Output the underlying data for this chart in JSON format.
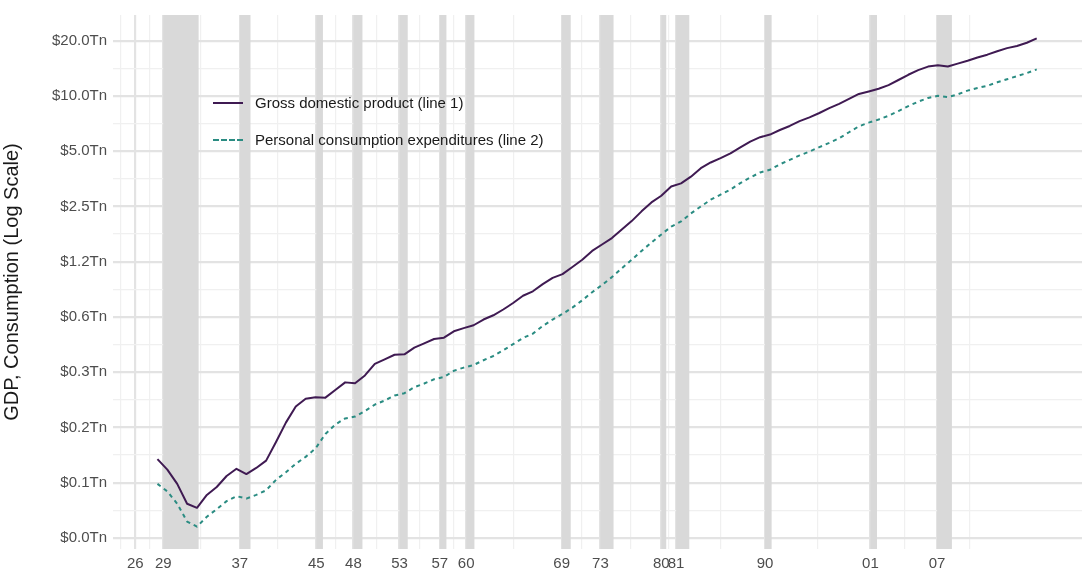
{
  "chart_data": {
    "type": "line",
    "ylabel": "GDP, Consumption (Log Scale)",
    "log": "y",
    "grid": true,
    "legend": "top left",
    "marker": "none",
    "x": [
      "1929",
      "1930",
      "1931",
      "1932",
      "1933",
      "1934",
      "1935",
      "1936",
      "1937",
      "1938",
      "1939",
      "1940",
      "1941",
      "1942",
      "1943",
      "1944",
      "1945",
      "1946",
      "1947",
      "1948",
      "1949",
      "1950",
      "1951",
      "1952",
      "1953",
      "1954",
      "1955",
      "1956",
      "1957",
      "1958",
      "1959",
      "1960",
      "1961",
      "1962",
      "1963",
      "1964",
      "1965",
      "1966",
      "1967",
      "1968",
      "1969",
      "1970",
      "1971",
      "1972",
      "1973",
      "1974",
      "1975",
      "1976",
      "1977",
      "1978",
      "1979",
      "1980",
      "1981",
      "1982",
      "1983",
      "1984",
      "1985",
      "1986",
      "1987",
      "1988",
      "1989",
      "1990",
      "1991",
      "1992",
      "1993",
      "1994",
      "1995",
      "1996",
      "1997",
      "1998",
      "1999",
      "2000",
      "2001",
      "2002",
      "2003",
      "2004",
      "2005",
      "2006",
      "2007",
      "2008",
      "2009",
      "2010",
      "2011",
      "2012",
      "2013",
      "2014",
      "2015",
      "2016",
      "2017",
      "2018"
    ],
    "series": [
      {
        "name": "Gross domestic product (line 1)",
        "color": "#3f1a52",
        "line_style": "solid",
        "values": [
          0.105,
          0.092,
          0.077,
          0.06,
          0.057,
          0.067,
          0.074,
          0.085,
          0.093,
          0.087,
          0.094,
          0.103,
          0.13,
          0.166,
          0.203,
          0.224,
          0.228,
          0.227,
          0.25,
          0.275,
          0.272,
          0.3,
          0.347,
          0.367,
          0.389,
          0.391,
          0.425,
          0.449,
          0.474,
          0.482,
          0.522,
          0.543,
          0.563,
          0.605,
          0.638,
          0.686,
          0.744,
          0.815,
          0.862,
          0.943,
          1.02,
          1.07,
          1.17,
          1.28,
          1.43,
          1.55,
          1.68,
          1.87,
          2.08,
          2.35,
          2.63,
          2.86,
          3.21,
          3.34,
          3.63,
          4.04,
          4.34,
          4.58,
          4.86,
          5.24,
          5.64,
          5.96,
          6.16,
          6.52,
          6.86,
          7.29,
          7.64,
          8.07,
          8.58,
          9.06,
          9.63,
          10.25,
          10.58,
          10.94,
          11.46,
          12.21,
          13.04,
          13.82,
          14.45,
          14.71,
          14.45,
          14.99,
          15.54,
          16.2,
          16.78,
          17.52,
          18.22,
          18.71,
          19.49,
          20.58
        ]
      },
      {
        "name": "Personal consumption expenditures (line 2)",
        "color": "#2a8c82",
        "line_style": "dashed",
        "values": [
          0.077,
          0.07,
          0.06,
          0.048,
          0.045,
          0.051,
          0.056,
          0.062,
          0.066,
          0.064,
          0.067,
          0.071,
          0.081,
          0.089,
          0.099,
          0.108,
          0.12,
          0.144,
          0.162,
          0.175,
          0.179,
          0.192,
          0.208,
          0.219,
          0.233,
          0.24,
          0.259,
          0.271,
          0.286,
          0.294,
          0.318,
          0.331,
          0.342,
          0.363,
          0.383,
          0.411,
          0.444,
          0.48,
          0.507,
          0.558,
          0.605,
          0.649,
          0.702,
          0.77,
          0.852,
          0.933,
          1.03,
          1.15,
          1.28,
          1.43,
          1.59,
          1.76,
          1.94,
          2.07,
          2.29,
          2.5,
          2.72,
          2.9,
          3.09,
          3.35,
          3.59,
          3.83,
          3.96,
          4.24,
          4.48,
          4.74,
          4.98,
          5.26,
          5.55,
          5.88,
          6.34,
          6.83,
          7.15,
          7.44,
          7.8,
          8.27,
          8.8,
          9.3,
          9.75,
          10.01,
          9.85,
          10.2,
          10.69,
          11.05,
          11.36,
          11.86,
          12.33,
          12.82,
          13.32,
          13.95
        ]
      }
    ],
    "xlim": [
      "1924-07",
      "2022-08"
    ],
    "xticks": [
      {
        "value": "1925-04",
        "label": null
      },
      {
        "value": "1926-10",
        "label": "26"
      },
      {
        "value": "1928-03",
        "label": null
      },
      {
        "value": "1929-08",
        "label": "29"
      },
      {
        "value": "1933-06",
        "label": null
      },
      {
        "value": "1937-05",
        "label": "37"
      },
      {
        "value": "1941-03",
        "label": null
      },
      {
        "value": "1945-02",
        "label": "45"
      },
      {
        "value": "1947-01",
        "label": null
      },
      {
        "value": "1948-11",
        "label": "48"
      },
      {
        "value": "1951-03",
        "label": null
      },
      {
        "value": "1953-07",
        "label": "53"
      },
      {
        "value": "1955-08",
        "label": null
      },
      {
        "value": "1957-08",
        "label": "57"
      },
      {
        "value": "1959-01",
        "label": null
      },
      {
        "value": "1960-04",
        "label": "60"
      },
      {
        "value": "1965-02",
        "label": null
      },
      {
        "value": "1969-12",
        "label": "69"
      },
      {
        "value": "1971-12",
        "label": null
      },
      {
        "value": "1973-11",
        "label": "73"
      },
      {
        "value": "1976-12",
        "label": null
      },
      {
        "value": "1980-01",
        "label": "80"
      },
      {
        "value": "1980-10",
        "label": null
      },
      {
        "value": "1981-07",
        "label": "81"
      },
      {
        "value": "1986-01",
        "label": null
      },
      {
        "value": "1990-07",
        "label": "90"
      },
      {
        "value": "1995-11",
        "label": null
      },
      {
        "value": "2001-03",
        "label": "01"
      },
      {
        "value": "2004-08",
        "label": null
      },
      {
        "value": "2007-12",
        "label": "07"
      },
      {
        "value": "2011-03",
        "label": null
      }
    ],
    "ylim": [
      0.034,
      27.6
    ],
    "yticks": [
      {
        "value": 0.0390625,
        "label": "$0.0Tn"
      },
      {
        "value": 0.0552,
        "label": null
      },
      {
        "value": 0.078125,
        "label": "$0.1Tn"
      },
      {
        "value": 0.1105,
        "label": null
      },
      {
        "value": 0.15625,
        "label": "$0.2Tn"
      },
      {
        "value": 0.221,
        "label": null
      },
      {
        "value": 0.3125,
        "label": "$0.3Tn"
      },
      {
        "value": 0.442,
        "label": null
      },
      {
        "value": 0.625,
        "label": "$0.6Tn"
      },
      {
        "value": 0.884,
        "label": null
      },
      {
        "value": 1.25,
        "label": "$1.2Tn"
      },
      {
        "value": 1.768,
        "label": null
      },
      {
        "value": 2.5,
        "label": "$2.5Tn"
      },
      {
        "value": 3.536,
        "label": null
      },
      {
        "value": 5,
        "label": "$5.0Tn"
      },
      {
        "value": 7.071,
        "label": null
      },
      {
        "value": 10,
        "label": "$10.0Tn"
      },
      {
        "value": 14.14,
        "label": null
      },
      {
        "value": 20,
        "label": "$20.0Tn"
      }
    ],
    "bands": [
      {
        "axis": "x",
        "from": "1929-08",
        "to": "1933-03",
        "color": "#d9d9d9"
      },
      {
        "axis": "x",
        "from": "1937-05",
        "to": "1938-06",
        "color": "#d9d9d9"
      },
      {
        "axis": "x",
        "from": "1945-02",
        "to": "1945-10",
        "color": "#d9d9d9"
      },
      {
        "axis": "x",
        "from": "1948-11",
        "to": "1949-10",
        "color": "#d9d9d9"
      },
      {
        "axis": "x",
        "from": "1953-07",
        "to": "1954-05",
        "color": "#d9d9d9"
      },
      {
        "axis": "x",
        "from": "1957-08",
        "to": "1958-04",
        "color": "#d9d9d9"
      },
      {
        "axis": "x",
        "from": "1960-04",
        "to": "1961-02",
        "color": "#d9d9d9"
      },
      {
        "axis": "x",
        "from": "1969-12",
        "to": "1970-11",
        "color": "#d9d9d9"
      },
      {
        "axis": "x",
        "from": "1973-11",
        "to": "1975-03",
        "color": "#d9d9d9"
      },
      {
        "axis": "x",
        "from": "1980-01",
        "to": "1980-07",
        "color": "#d9d9d9"
      },
      {
        "axis": "x",
        "from": "1981-07",
        "to": "1982-11",
        "color": "#d9d9d9"
      },
      {
        "axis": "x",
        "from": "1990-07",
        "to": "1991-03",
        "color": "#d9d9d9"
      },
      {
        "axis": "x",
        "from": "2001-03",
        "to": "2001-11",
        "color": "#d9d9d9"
      },
      {
        "axis": "x",
        "from": "2007-12",
        "to": "2009-06",
        "color": "#d9d9d9"
      }
    ]
  }
}
